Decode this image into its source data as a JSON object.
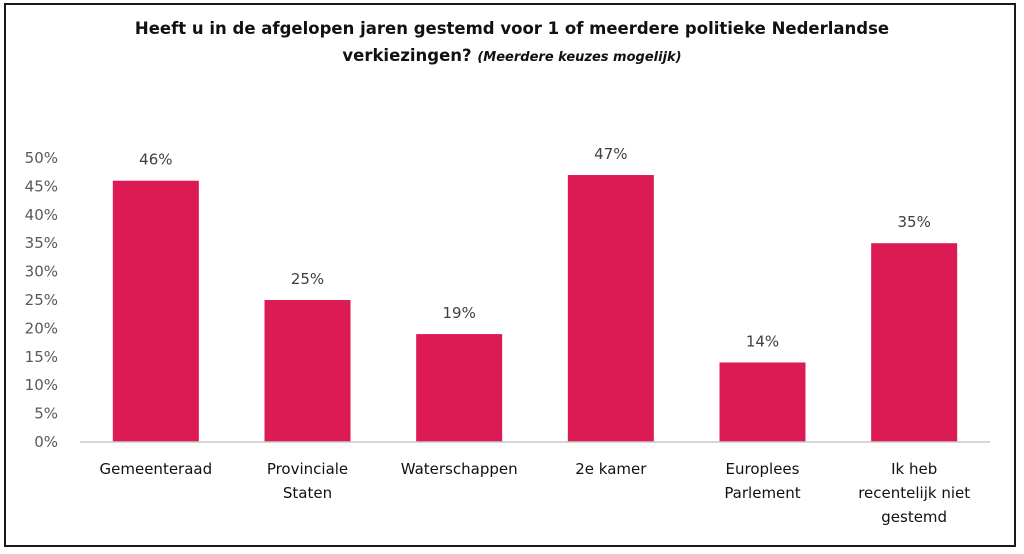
{
  "chart_data": {
    "type": "bar",
    "title": "Heeft u in de afgelopen jaren gestemd voor 1 of meerdere politieke Nederlandse verkiezingen?",
    "subtitle": "(Meerdere keuzes mogelijk)",
    "categories": [
      "Gemeenteraad",
      "Provinciale Staten",
      "Waterschappen",
      "2e kamer",
      "Europlees Parlement",
      "Ik heb recentelijk niet gestemd"
    ],
    "category_lines": [
      [
        "Gemeenteraad"
      ],
      [
        "Provinciale",
        "Staten"
      ],
      [
        "Waterschappen"
      ],
      [
        "2e kamer"
      ],
      [
        "Europlees",
        "Parlement"
      ],
      [
        "Ik heb",
        "recentelijk niet",
        "gestemd"
      ]
    ],
    "values": [
      46,
      25,
      19,
      47,
      14,
      35
    ],
    "value_labels": [
      "46%",
      "25%",
      "19%",
      "47%",
      "14%",
      "35%"
    ],
    "y_ticks": [
      "0%",
      "5%",
      "10%",
      "15%",
      "20%",
      "25%",
      "30%",
      "35%",
      "40%",
      "45%",
      "50%"
    ],
    "ylim": [
      0,
      50
    ],
    "xlabel": "",
    "ylabel": "",
    "grid": false,
    "legend": "none",
    "bar_color": "#dc1a54"
  }
}
